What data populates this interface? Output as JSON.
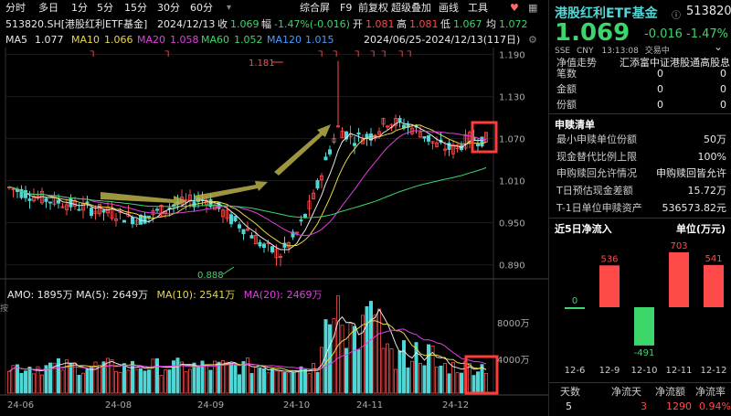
{
  "toolbar": {
    "periods": [
      "分时",
      "多日",
      "1分",
      "5分",
      "15分",
      "30分",
      "60分"
    ],
    "stock_label": "513820.SH[港股红利ETF基金]",
    "date": "2024/12/13",
    "close_label": "收",
    "close_value": "1.069",
    "change_label": "幅",
    "change_value": "-1.47%(-0.016)",
    "open_label": "开",
    "open_value": "1.081",
    "high_label": "高",
    "high_value": "1.081",
    "low_label": "低",
    "low_value": "1.067",
    "avg_label": "均",
    "avg_value": "1.072"
  },
  "menu": {
    "items": [
      "综合屏",
      "F9",
      "前复权",
      "超级叠加",
      "画线",
      "工具"
    ],
    "heart_icon": "heart-icon",
    "grid_icon": "grid-icon"
  },
  "ma_bar": {
    "items": [
      {
        "name": "MA5",
        "value": "1.077",
        "color": "#e8e8e8"
      },
      {
        "name": "MA10",
        "value": "1.066",
        "color": "#e8d84a"
      },
      {
        "name": "MA20",
        "value": "1.058",
        "color": "#e040e0"
      },
      {
        "name": "MA60",
        "value": "1.052",
        "color": "#3cd66a"
      },
      {
        "name": "MA120",
        "value": "1.015",
        "color": "#4a9cff"
      }
    ],
    "range_text": "2024/06/25-2024/12/13(117日)"
  },
  "price_axis": [
    "1.190",
    "1.130",
    "1.070",
    "1.010",
    "0.950",
    "0.890"
  ],
  "price_annotations": {
    "high": "1.181",
    "low": "0.888"
  },
  "volume_panel": {
    "label": "AMO: 1895万  MA(5): 2649万",
    "ma10": "MA(10): 2541万",
    "ma20": "MA(20): 2469万",
    "axis": [
      "8000万",
      "4000万"
    ],
    "side_text": "按"
  },
  "date_axis": [
    "24-06",
    "24-08",
    "24-09",
    "24-10",
    "24-11",
    "24-12"
  ],
  "right_panel": {
    "title": "港股红利ETF基金",
    "code": "513820",
    "price": "1.069",
    "change": "-0.016",
    "change_pct": "-1.47%",
    "exchange": "SSE",
    "currency": "CNY",
    "time": "13:13:08",
    "status": "交易中",
    "fund_manager_label": "净值走势",
    "fund_manager_value": "汇添富中证港股通高股息",
    "stats": [
      {
        "k": "笔数",
        "v": "0"
      },
      {
        "k": "金额",
        "v": "0"
      },
      {
        "k": "份额",
        "v": "0"
      }
    ],
    "stats_v2": [
      "0",
      "0",
      "0"
    ],
    "subscribe_title": "申赎清单",
    "subscribe": [
      {
        "k": "最小申赎单位份额",
        "v": "50万"
      },
      {
        "k": "现金替代比例上限",
        "v": "100%"
      },
      {
        "k": "申购赎回允许情况",
        "v": "申购赎回皆允许"
      },
      {
        "k": "T日预估现金差额",
        "v": "15.72万"
      },
      {
        "k": "T-1日单位申赎资产",
        "v": "536573.82元"
      }
    ],
    "flow_title": "近5日净流入",
    "flow_unit": "单位(万元)",
    "flow_chart": {
      "type": "bar",
      "categories": [
        "12-6",
        "12-9",
        "12-10",
        "12-11",
        "12-12"
      ],
      "values": [
        0,
        536,
        -491,
        703,
        541
      ],
      "labels": [
        "0",
        "536",
        "-491",
        "703",
        "541"
      ]
    },
    "footer_headers": [
      "天数",
      "净流天",
      "净流额",
      "净流率"
    ],
    "footer_values": [
      "5",
      "3",
      "1290",
      "0.94%"
    ]
  },
  "colors": {
    "up": "#ff4a4a",
    "down": "#3cd66a",
    "volume": "#4fd6d6",
    "highlight": "#ff3b3b"
  }
}
